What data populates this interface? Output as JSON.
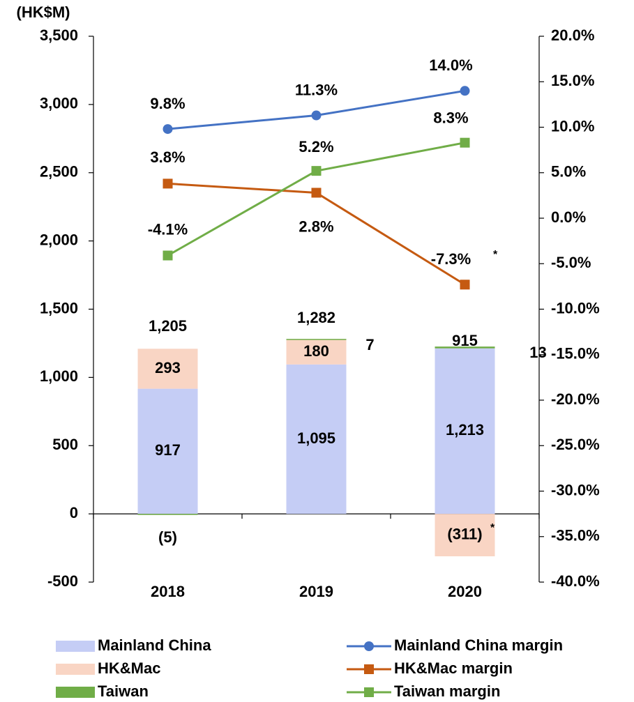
{
  "chart_data": {
    "type": "bar",
    "stacked": true,
    "ylabel": "(HK$M)",
    "categories": [
      "2018",
      "2019",
      "2020"
    ],
    "series": [
      {
        "name": "Mainland China",
        "type": "bar",
        "color": "#c5cdf5",
        "values": [
          917,
          1095,
          1213
        ],
        "value_labels": [
          "917",
          "1,095",
          "1,213"
        ]
      },
      {
        "name": "HK&Mac",
        "type": "bar",
        "color": "#f9d5c4",
        "values": [
          293,
          180,
          -311
        ],
        "value_labels": [
          "293",
          "180",
          "(311)"
        ]
      },
      {
        "name": "Taiwan",
        "type": "bar",
        "color": "#70ad47",
        "values": [
          -5,
          7,
          13
        ],
        "value_labels": [
          "(5)",
          "7",
          "13"
        ]
      },
      {
        "name": "Mainland China margin",
        "type": "line",
        "axis": "y2",
        "marker": "circle",
        "color": "#4472c4",
        "values": [
          9.8,
          11.3,
          14.0
        ],
        "value_labels": [
          "9.8%",
          "11.3%",
          "14.0%"
        ]
      },
      {
        "name": "HK&Mac margin",
        "type": "line",
        "axis": "y2",
        "marker": "square",
        "color": "#c55a11",
        "values": [
          3.8,
          2.8,
          -7.3
        ],
        "value_labels": [
          "3.8%",
          "2.8%",
          "-7.3%"
        ]
      },
      {
        "name": "Taiwan margin",
        "type": "line",
        "axis": "y2",
        "marker": "square",
        "color": "#70ad47",
        "values": [
          -4.1,
          5.2,
          8.3
        ],
        "value_labels": [
          "-4.1%",
          "5.2%",
          "8.3%"
        ]
      }
    ],
    "totals": [
      1205,
      1282,
      915
    ],
    "total_labels": [
      "1,205",
      "1,282",
      "915"
    ],
    "annotations": [
      "*",
      "*"
    ],
    "ylim": [
      -500,
      3500
    ],
    "yticks": [
      -500,
      0,
      500,
      {
        "value": 1000,
        "label": "1,000"
      },
      {
        "value": 1500,
        "label": "1,500"
      },
      {
        "value": 2000,
        "label": "2,000"
      },
      {
        "value": 2500,
        "label": "2,500"
      },
      {
        "value": 3000,
        "label": "3,000"
      },
      {
        "value": 3500,
        "label": "3,500"
      }
    ],
    "y2lim": [
      -40,
      20
    ],
    "y2ticks": [
      {
        "value": -40,
        "label": "-40.0%"
      },
      {
        "value": -35,
        "label": "-35.0%"
      },
      {
        "value": -30,
        "label": "-30.0%"
      },
      {
        "value": -25,
        "label": "-25.0%"
      },
      {
        "value": -20,
        "label": "-20.0%"
      },
      {
        "value": -15,
        "label": "-15.0%"
      },
      {
        "value": -10,
        "label": "-10.0%"
      },
      {
        "value": -5,
        "label": "-5.0%"
      },
      {
        "value": 0,
        "label": "0.0%"
      },
      {
        "value": 5,
        "label": "5.0%"
      },
      {
        "value": 10,
        "label": "10.0%"
      },
      {
        "value": 15,
        "label": "15.0%"
      },
      {
        "value": 20,
        "label": "20.0%"
      }
    ],
    "legend": "bottom",
    "grid": false
  }
}
